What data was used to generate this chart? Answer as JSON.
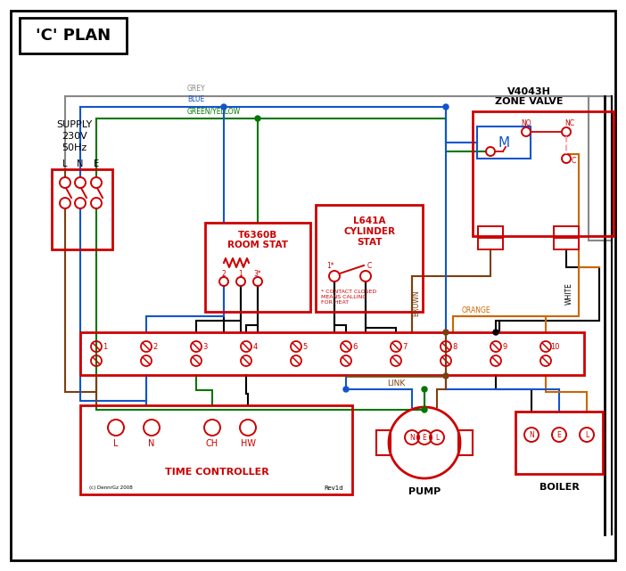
{
  "title": "'C' PLAN",
  "bg": "#ffffff",
  "black": "#000000",
  "red": "#cc0000",
  "blue": "#1155cc",
  "green": "#007700",
  "grey": "#888888",
  "brown": "#7b4010",
  "orange": "#cc6600",
  "pink": "#ff99aa",
  "zone_valve_label1": "V4043H",
  "zone_valve_label2": "ZONE VALVE",
  "room_stat_label1": "T6360B",
  "room_stat_label2": "ROOM STAT",
  "cyl_stat_label1": "L641A",
  "cyl_stat_label2": "CYLINDER",
  "cyl_stat_label3": "STAT",
  "tc_label": "TIME CONTROLLER",
  "tc_terminals": [
    "L",
    "N",
    "CH",
    "HW"
  ],
  "pump_label": "PUMP",
  "boiler_label": "BOILER",
  "nel": [
    "N",
    "E",
    "L"
  ],
  "term_nums": [
    "1",
    "2",
    "3",
    "4",
    "5",
    "6",
    "7",
    "8",
    "9",
    "10"
  ],
  "link_label": "LINK",
  "supply1": "SUPPLY",
  "supply2": "230V",
  "supply3": "50Hz",
  "lne": [
    "L",
    "N",
    "E"
  ],
  "no_label": "NO",
  "nc_label": "NC",
  "c_label": "C",
  "grey_label": "GREY",
  "blue_label": "BLUE",
  "gy_label": "GREEN/YELLOW",
  "brown_label": "BROWN",
  "white_label": "WHITE",
  "orange_label": "ORANGE",
  "contact_note": "* CONTACT CLOSED\nMEANS CALLING\nFOR HEAT",
  "copyright": "(c) DennrGz 2008",
  "rev": "Rev1d"
}
